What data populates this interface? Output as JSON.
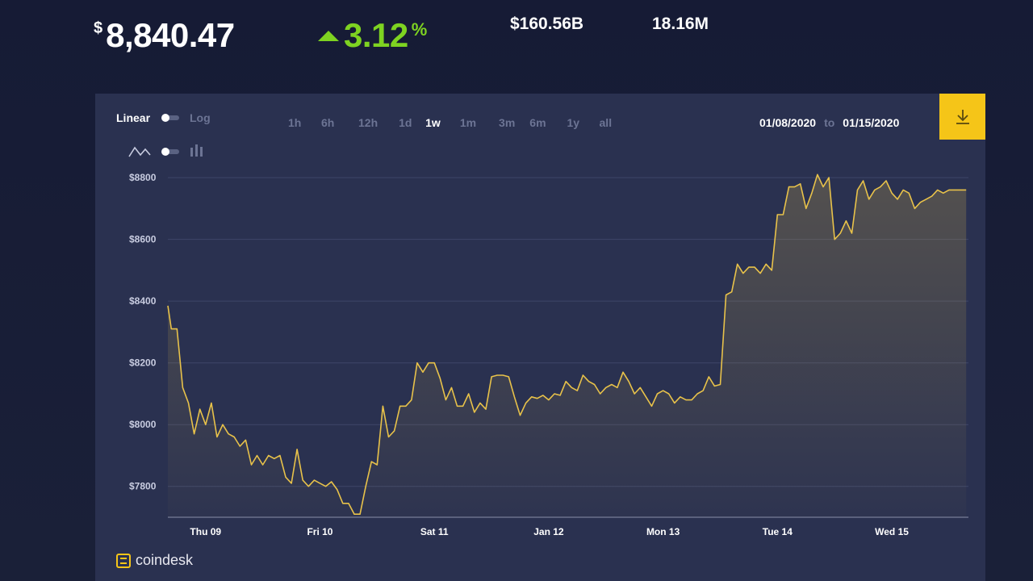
{
  "header": {
    "currency_symbol": "$",
    "price": "8,840.47",
    "change": "3.12",
    "change_unit": "%",
    "market_cap": "$160.56B",
    "volume": "18.16M",
    "colors": {
      "up": "#7ed321",
      "accent": "#f5c518",
      "line": "#e8c24a"
    }
  },
  "toolbar": {
    "scale_linear": "Linear",
    "scale_log": "Log",
    "ranges": [
      "1h",
      "6h",
      "12h",
      "1d",
      "1w",
      "1m",
      "3m",
      "6m",
      "1y",
      "all"
    ],
    "active_range": "1w",
    "date_from": "01/08/2020",
    "date_sep": "to",
    "date_to": "01/15/2020",
    "chart_type_icons": [
      "line-chart-icon",
      "candlestick-icon"
    ],
    "download_icon": "download-icon"
  },
  "brand": {
    "name": "coindesk"
  },
  "chart_data": {
    "type": "area",
    "title": "",
    "xlabel": "",
    "ylabel": "",
    "ylim": [
      7700,
      8850
    ],
    "yticks": [
      7800,
      8000,
      8200,
      8400,
      8600,
      8800
    ],
    "ytick_labels": [
      "$7800",
      "$8000",
      "$8200",
      "$8400",
      "$8600",
      "$8800"
    ],
    "xlim": [
      0,
      7
    ],
    "xticks": [
      0.33,
      1.33,
      2.33,
      3.33,
      4.33,
      5.33,
      6.33
    ],
    "xtick_labels": [
      "Thu 09",
      "Fri 10",
      "Sat 11",
      "Jan 12",
      "Mon 13",
      "Tue 14",
      "Wed 15"
    ],
    "grid": true,
    "x": [
      0,
      0.03,
      0.08,
      0.13,
      0.18,
      0.23,
      0.28,
      0.33,
      0.38,
      0.43,
      0.48,
      0.53,
      0.58,
      0.63,
      0.68,
      0.73,
      0.78,
      0.83,
      0.88,
      0.93,
      0.98,
      1.03,
      1.08,
      1.13,
      1.18,
      1.23,
      1.28,
      1.33,
      1.38,
      1.43,
      1.48,
      1.53,
      1.58,
      1.63,
      1.68,
      1.73,
      1.78,
      1.83,
      1.88,
      1.93,
      1.98,
      2.03,
      2.08,
      2.13,
      2.18,
      2.23,
      2.28,
      2.33,
      2.38,
      2.43,
      2.48,
      2.53,
      2.58,
      2.63,
      2.68,
      2.73,
      2.78,
      2.83,
      2.88,
      2.93,
      2.98,
      3.03,
      3.08,
      3.13,
      3.18,
      3.23,
      3.28,
      3.33,
      3.38,
      3.43,
      3.48,
      3.53,
      3.58,
      3.63,
      3.68,
      3.73,
      3.78,
      3.83,
      3.88,
      3.93,
      3.98,
      4.03,
      4.08,
      4.13,
      4.18,
      4.23,
      4.28,
      4.33,
      4.38,
      4.43,
      4.48,
      4.53,
      4.58,
      4.63,
      4.68,
      4.73,
      4.78,
      4.83,
      4.88,
      4.93,
      4.98,
      5.03,
      5.08,
      5.13,
      5.18,
      5.23,
      5.28,
      5.33,
      5.38,
      5.43,
      5.48,
      5.53,
      5.58,
      5.63,
      5.68,
      5.73,
      5.78,
      5.83,
      5.88,
      5.93,
      5.98,
      6.03,
      6.08,
      6.13,
      6.18,
      6.23,
      6.28,
      6.33,
      6.38,
      6.43,
      6.48,
      6.53,
      6.58,
      6.63,
      6.68,
      6.73,
      6.78,
      6.83,
      6.88,
      6.93,
      6.98
    ],
    "series": [
      {
        "values": [
          8385,
          8310,
          8310,
          8120,
          8070,
          7970,
          8050,
          8000,
          8070,
          7960,
          8000,
          7970,
          7960,
          7930,
          7950,
          7870,
          7900,
          7870,
          7900,
          7890,
          7900,
          7830,
          7810,
          7920,
          7820,
          7800,
          7820,
          7810,
          7800,
          7815,
          7790,
          7745,
          7745,
          7710,
          7710,
          7800,
          7880,
          7870,
          8060,
          7960,
          7980,
          8060,
          8060,
          8080,
          8200,
          8170,
          8200,
          8200,
          8150,
          8080,
          8120,
          8060,
          8060,
          8100,
          8040,
          8070,
          8050,
          8155,
          8160,
          8160,
          8155,
          8090,
          8030,
          8070,
          8090,
          8085,
          8095,
          8080,
          8100,
          8095,
          8140,
          8120,
          8110,
          8160,
          8140,
          8130,
          8100,
          8120,
          8130,
          8120,
          8170,
          8140,
          8100,
          8120,
          8090,
          8060,
          8100,
          8110,
          8100,
          8070,
          8090,
          8080,
          8080,
          8100,
          8110,
          8155,
          8125,
          8130,
          8420,
          8430,
          8520,
          8490,
          8510,
          8510,
          8490,
          8520,
          8500,
          8680,
          8680,
          8770,
          8770,
          8780,
          8700,
          8750,
          8810,
          8770,
          8800,
          8600,
          8620,
          8660,
          8620,
          8760,
          8790,
          8730,
          8760,
          8770,
          8790,
          8750,
          8730,
          8760,
          8750,
          8700,
          8720,
          8730,
          8740,
          8760,
          8750,
          8760,
          8760,
          8760,
          8760
        ]
      }
    ]
  }
}
